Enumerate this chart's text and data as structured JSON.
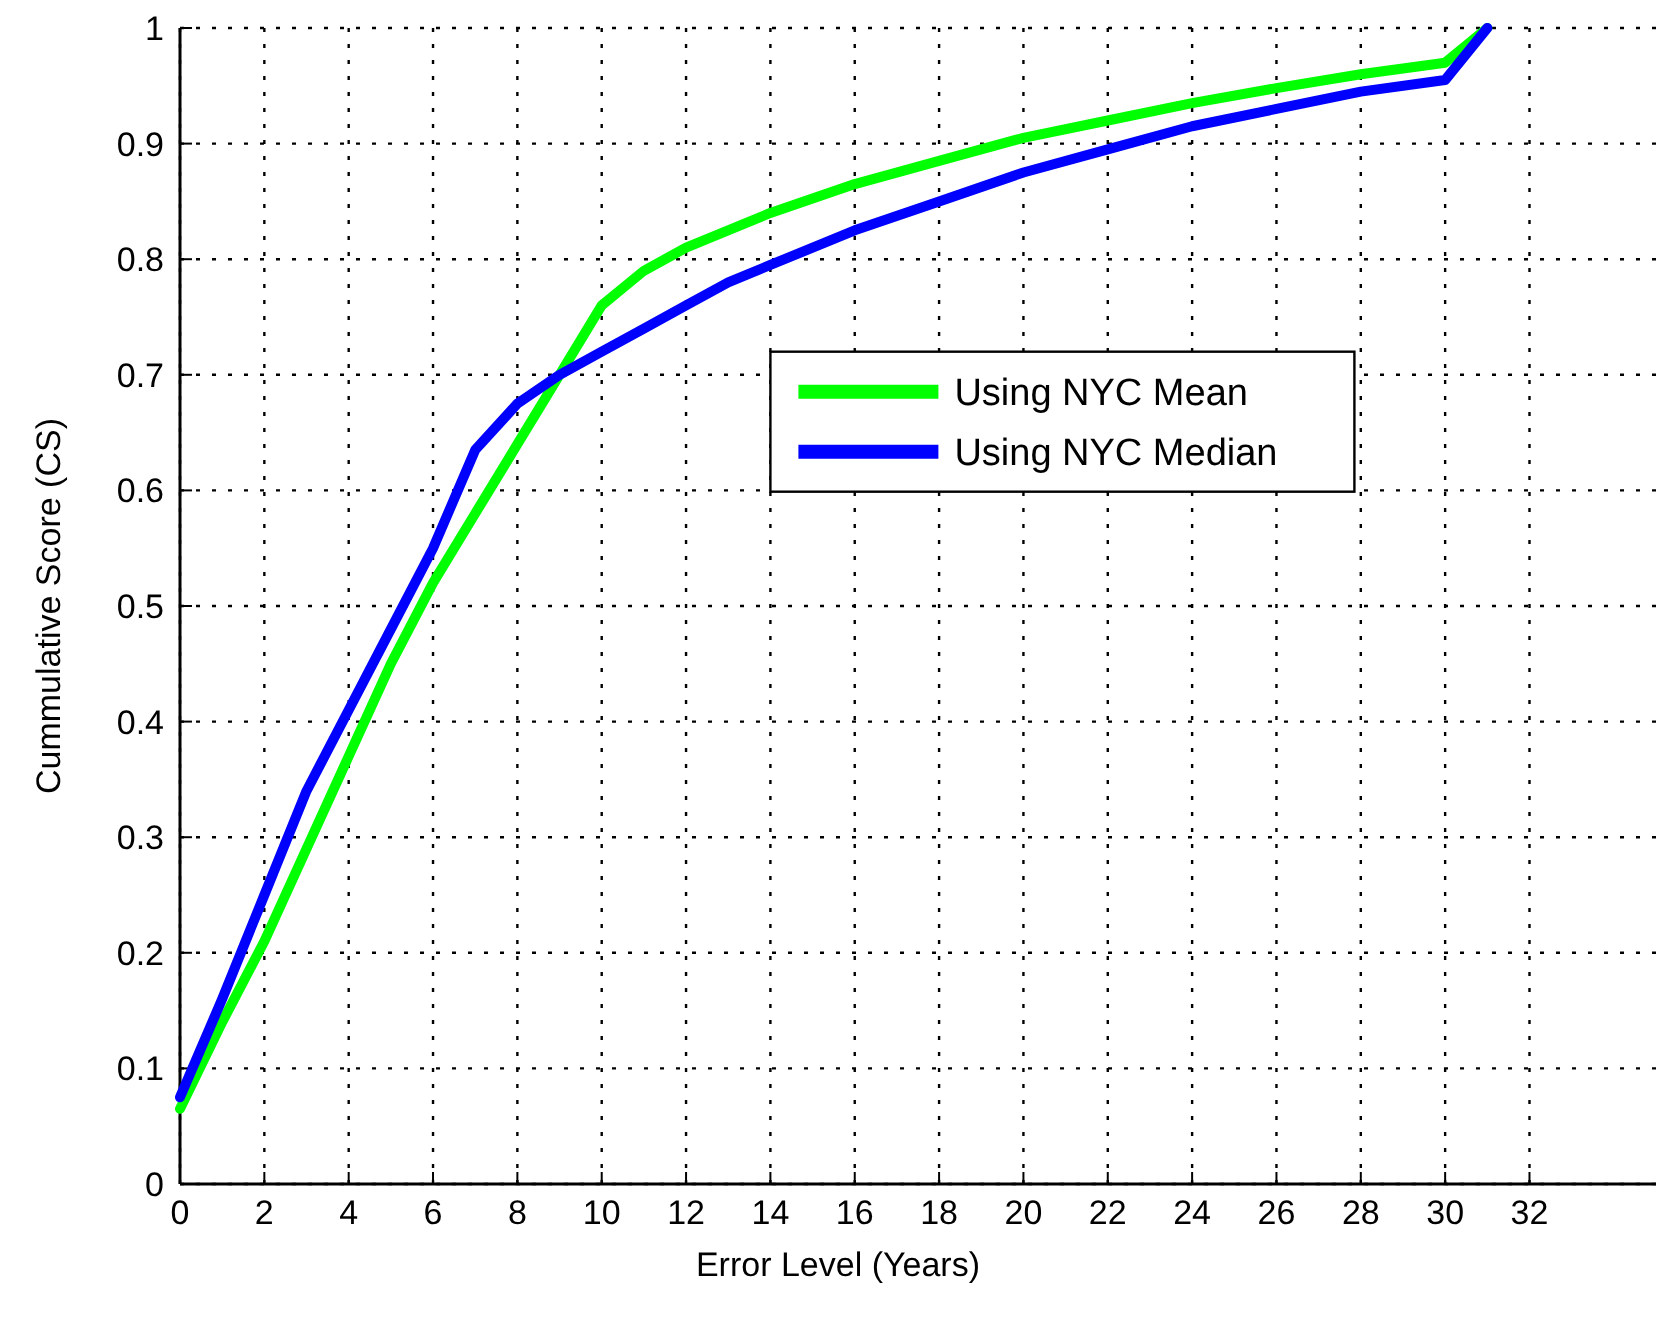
{
  "chart_data": {
    "type": "line",
    "xlabel": "Error Level (Years)",
    "ylabel": "Cummulative Score (CS)",
    "xlim": [
      0,
      35
    ],
    "xticks": [
      0,
      2,
      4,
      6,
      8,
      10,
      12,
      14,
      16,
      18,
      20,
      22,
      24,
      26,
      28,
      30,
      32
    ],
    "ylim": [
      0,
      1
    ],
    "yticks": [
      0,
      0.1,
      0.2,
      0.3,
      0.4,
      0.5,
      0.6,
      0.7,
      0.8,
      0.9,
      1
    ],
    "grid": true,
    "legend": "right",
    "marker": "none",
    "line_style": "solid",
    "series": [
      {
        "name": "Using NYC Mean",
        "color": "#00ff00",
        "x": [
          0,
          1,
          2,
          3,
          4,
          5,
          6,
          7,
          8,
          9,
          10,
          11,
          12,
          14,
          16,
          18,
          20,
          22,
          24,
          26,
          28,
          30,
          31
        ],
        "values": [
          0.065,
          0.14,
          0.21,
          0.29,
          0.37,
          0.45,
          0.52,
          0.58,
          0.64,
          0.7,
          0.76,
          0.79,
          0.81,
          0.84,
          0.865,
          0.885,
          0.905,
          0.92,
          0.935,
          0.948,
          0.96,
          0.97,
          1.0
        ]
      },
      {
        "name": "Using NYC Median",
        "color": "#0000ff",
        "x": [
          0,
          1,
          2,
          3,
          4,
          5,
          6,
          7,
          8,
          9,
          10,
          11,
          12,
          13,
          14,
          16,
          18,
          20,
          22,
          24,
          26,
          28,
          30,
          31
        ],
        "values": [
          0.075,
          0.16,
          0.25,
          0.34,
          0.41,
          0.48,
          0.55,
          0.635,
          0.675,
          0.7,
          0.72,
          0.74,
          0.76,
          0.78,
          0.795,
          0.825,
          0.85,
          0.875,
          0.895,
          0.915,
          0.93,
          0.945,
          0.955,
          1.0
        ]
      }
    ]
  }
}
